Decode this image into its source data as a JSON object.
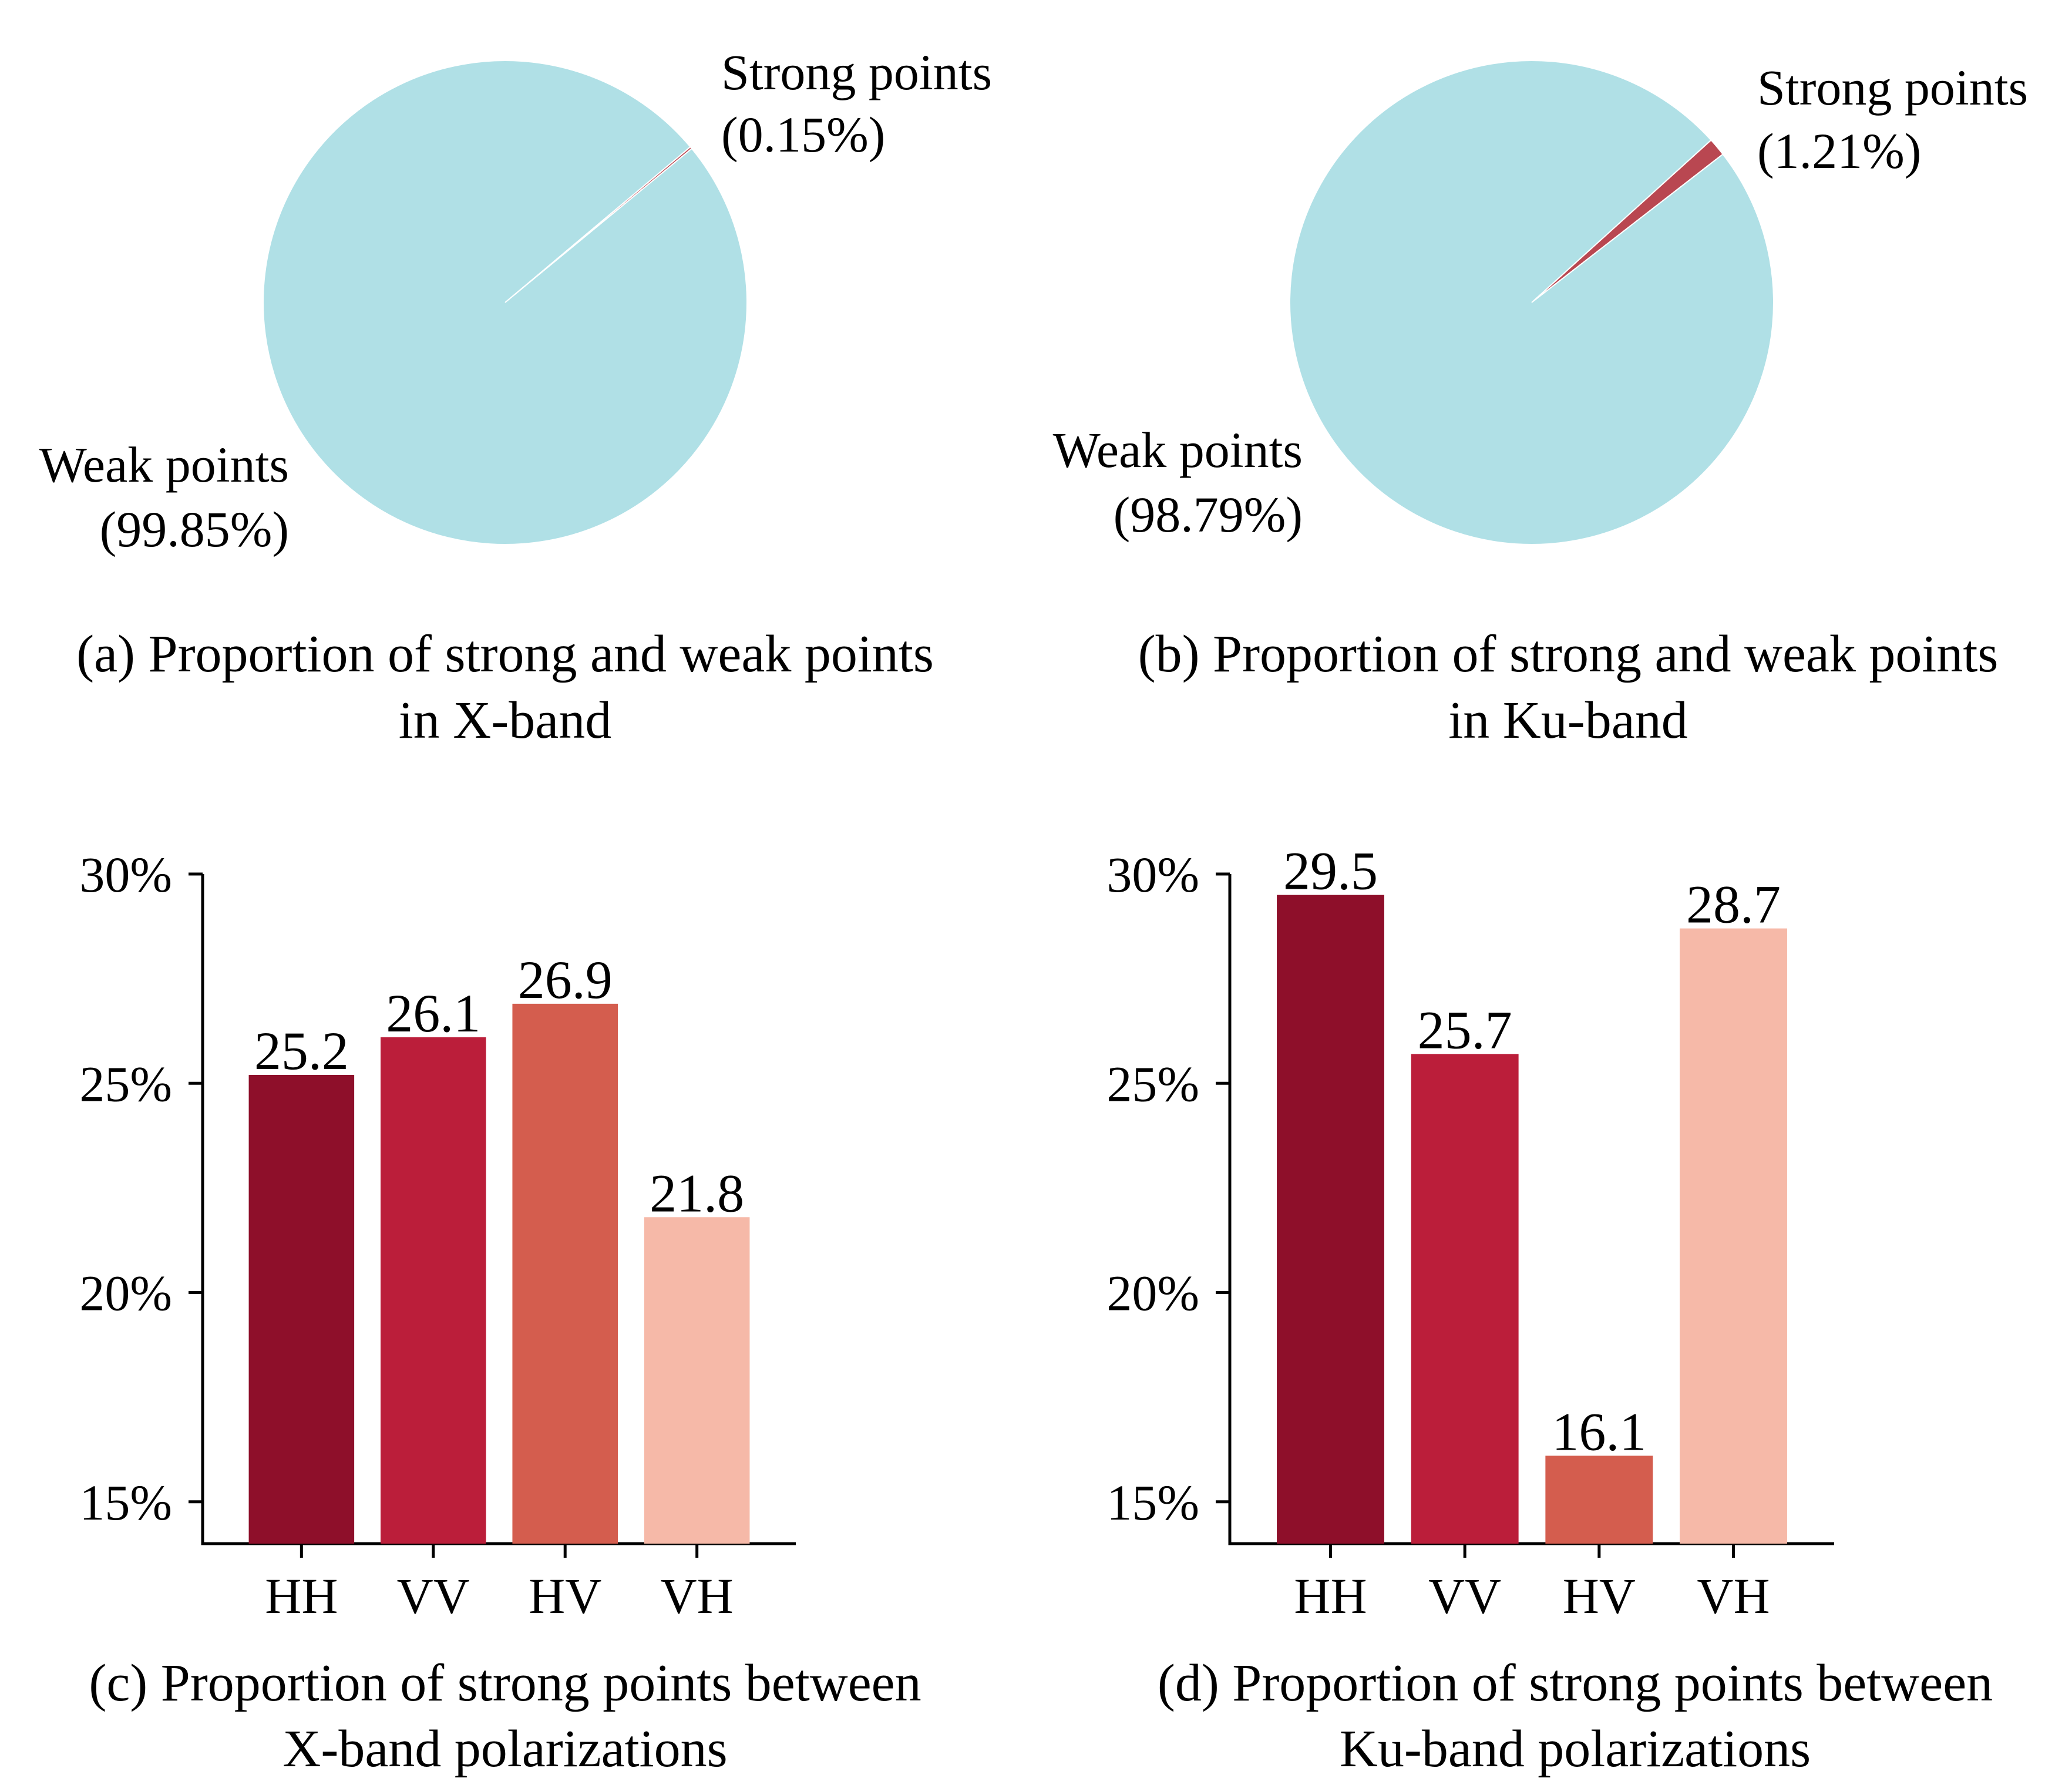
{
  "chart_data": [
    {
      "type": "pie",
      "slices": [
        {
          "name": "Strong points",
          "value": 0.15,
          "value_label": "(0.15%)",
          "color": "#b94751"
        },
        {
          "name": "Weak points",
          "value": 99.85,
          "value_label": "(99.85%)",
          "color": "#b0e0e6"
        }
      ],
      "caption": [
        "(a) Proportion of strong and weak points",
        "in X-band"
      ]
    },
    {
      "type": "pie",
      "slices": [
        {
          "name": "Strong points",
          "value": 1.21,
          "value_label": "(1.21%)",
          "color": "#b94751"
        },
        {
          "name": "Weak points",
          "value": 98.79,
          "value_label": "(98.79%)",
          "color": "#b0e0e6"
        }
      ],
      "caption": [
        "(b) Proportion of strong and weak points",
        "in Ku-band"
      ]
    },
    {
      "type": "bar",
      "categories": [
        "HH",
        "VV",
        "HV",
        "VH"
      ],
      "values": [
        25.2,
        26.1,
        26.9,
        21.8
      ],
      "data_labels": [
        "25.2",
        "26.1",
        "26.9",
        "21.8"
      ],
      "colors": [
        "#8e0f2a",
        "#bb1e3a",
        "#d45d4e",
        "#f6b9a8"
      ],
      "ylim": [
        14,
        30
      ],
      "yticks": [
        15,
        20,
        25,
        30
      ],
      "ytick_labels": [
        "15%",
        "20%",
        "25%",
        "30%"
      ],
      "caption": [
        "(c) Proportion of strong points between",
        "X-band polarizations"
      ]
    },
    {
      "type": "bar",
      "categories": [
        "HH",
        "VV",
        "HV",
        "VH"
      ],
      "values": [
        29.5,
        25.7,
        16.1,
        28.7
      ],
      "data_labels": [
        "29.5",
        "25.7",
        "16.1",
        "28.7"
      ],
      "colors": [
        "#8e0f2a",
        "#bb1e3a",
        "#d45d4e",
        "#f6b9a8"
      ],
      "ylim": [
        14,
        30
      ],
      "yticks": [
        15,
        20,
        25,
        30
      ],
      "ytick_labels": [
        "15%",
        "20%",
        "25%",
        "30%"
      ],
      "caption": [
        "(d) Proportion of strong points between",
        "Ku-band polarizations"
      ]
    }
  ]
}
